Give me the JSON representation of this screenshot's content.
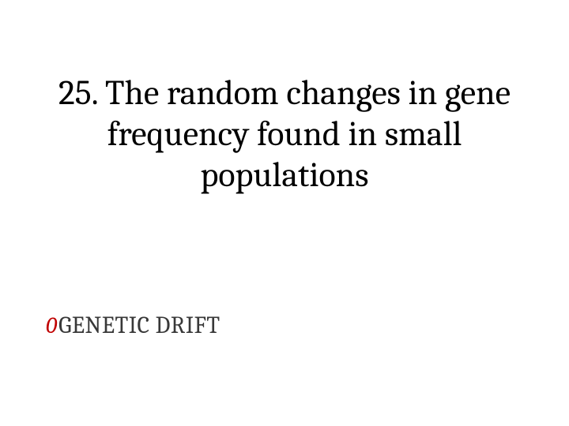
{
  "slide": {
    "title": "25. The random changes in gene frequency found in small populations",
    "title_color": "#000000",
    "title_fontsize": 44,
    "bullet_marker": "0",
    "bullet_color": "#c00000",
    "answer": "GENETIC DRIFT",
    "answer_color": "#383838",
    "answer_fontsize": 30,
    "background_color": "#ffffff"
  }
}
